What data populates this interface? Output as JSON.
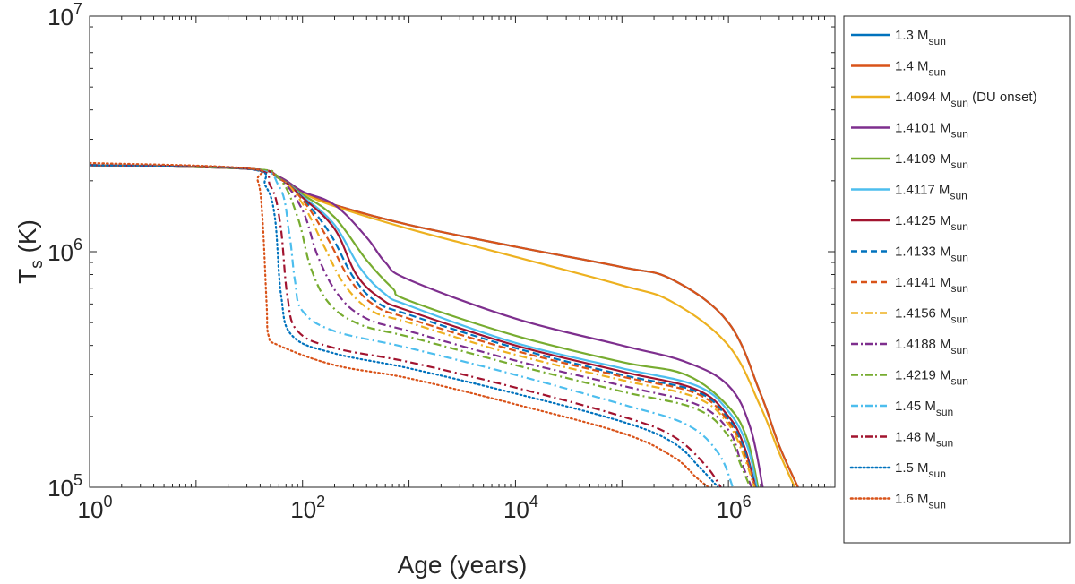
{
  "chart_data": {
    "type": "line",
    "title": "",
    "xlabel": "Age (years)",
    "ylabel_main": "T",
    "ylabel_sub": "s",
    "ylabel_tail": " (K)",
    "xscale": "log",
    "yscale": "log",
    "xlim": [
      1,
      10000000
    ],
    "ylim": [
      100000,
      10000000
    ],
    "x_ticks": [
      {
        "base": "10",
        "exp": "0",
        "value": 1
      },
      {
        "base": "10",
        "exp": "2",
        "value": 100
      },
      {
        "base": "10",
        "exp": "4",
        "value": 10000
      },
      {
        "base": "10",
        "exp": "6",
        "value": 1000000
      }
    ],
    "y_ticks": [
      {
        "base": "10",
        "exp": "5",
        "value": 100000
      },
      {
        "base": "10",
        "exp": "6",
        "value": 1000000
      },
      {
        "base": "10",
        "exp": "7",
        "value": 10000000
      }
    ],
    "grid": false,
    "legend_position": "outside-right",
    "series": [
      {
        "name": "1.3 M",
        "sub": "sun",
        "suffix": "",
        "color": "#0072BD",
        "dash": "solid",
        "points": [
          [
            1,
            2330000
          ],
          [
            30,
            2250000
          ],
          [
            60,
            2080000
          ],
          [
            100,
            1800000
          ],
          [
            200,
            1580000
          ],
          [
            1000,
            1300000
          ],
          [
            10000,
            1050000
          ],
          [
            100000,
            860000
          ],
          [
            300000,
            760000
          ],
          [
            1000000,
            500000
          ],
          [
            2000000,
            250000
          ],
          [
            3000000,
            150000
          ],
          [
            4500000,
            100000
          ]
        ]
      },
      {
        "name": "1.4 M",
        "sub": "sun",
        "suffix": "",
        "color": "#D95319",
        "dash": "solid",
        "points": [
          [
            1,
            2330000
          ],
          [
            30,
            2250000
          ],
          [
            60,
            2080000
          ],
          [
            100,
            1800000
          ],
          [
            200,
            1580000
          ],
          [
            1000,
            1300000
          ],
          [
            10000,
            1050000
          ],
          [
            100000,
            860000
          ],
          [
            300000,
            760000
          ],
          [
            1000000,
            500000
          ],
          [
            2000000,
            250000
          ],
          [
            3000000,
            150000
          ],
          [
            4500000,
            100000
          ]
        ]
      },
      {
        "name": "1.4094 M",
        "sub": "sun",
        "suffix": " (DU onset)",
        "color": "#EDB120",
        "dash": "solid",
        "points": [
          [
            1,
            2330000
          ],
          [
            30,
            2250000
          ],
          [
            60,
            2080000
          ],
          [
            100,
            1780000
          ],
          [
            200,
            1560000
          ],
          [
            1000,
            1250000
          ],
          [
            10000,
            950000
          ],
          [
            100000,
            720000
          ],
          [
            300000,
            610000
          ],
          [
            1000000,
            400000
          ],
          [
            2000000,
            220000
          ],
          [
            3000000,
            140000
          ],
          [
            4200000,
            100000
          ]
        ]
      },
      {
        "name": "1.4101 M",
        "sub": "sun",
        "suffix": "",
        "color": "#7E2F8E",
        "dash": "solid",
        "points": [
          [
            1,
            2330000
          ],
          [
            30,
            2250000
          ],
          [
            60,
            2080000
          ],
          [
            100,
            1800000
          ],
          [
            200,
            1580000
          ],
          [
            400,
            1150000
          ],
          [
            600,
            900000
          ],
          [
            1000,
            760000
          ],
          [
            10000,
            520000
          ],
          [
            100000,
            400000
          ],
          [
            400000,
            340000
          ],
          [
            1000000,
            270000
          ],
          [
            1600000,
            180000
          ],
          [
            2100000,
            100000
          ]
        ]
      },
      {
        "name": "1.4109 M",
        "sub": "sun",
        "suffix": "",
        "color": "#77AC30",
        "dash": "solid",
        "points": [
          [
            1,
            2330000
          ],
          [
            30,
            2250000
          ],
          [
            60,
            2050000
          ],
          [
            100,
            1750000
          ],
          [
            200,
            1400000
          ],
          [
            400,
            920000
          ],
          [
            700,
            700000
          ],
          [
            1000,
            620000
          ],
          [
            10000,
            440000
          ],
          [
            100000,
            340000
          ],
          [
            400000,
            300000
          ],
          [
            1000000,
            220000
          ],
          [
            1500000,
            160000
          ],
          [
            1900000,
            100000
          ]
        ]
      },
      {
        "name": "1.4117 M",
        "sub": "sun",
        "suffix": "",
        "color": "#4DBEEE",
        "dash": "solid",
        "points": [
          [
            1,
            2330000
          ],
          [
            30,
            2250000
          ],
          [
            60,
            2050000
          ],
          [
            100,
            1720000
          ],
          [
            200,
            1300000
          ],
          [
            350,
            850000
          ],
          [
            600,
            660000
          ],
          [
            1000,
            590000
          ],
          [
            10000,
            410000
          ],
          [
            100000,
            320000
          ],
          [
            500000,
            270000
          ],
          [
            1000000,
            210000
          ],
          [
            1500000,
            150000
          ],
          [
            1850000,
            100000
          ]
        ]
      },
      {
        "name": "1.4125 M",
        "sub": "sun",
        "suffix": "",
        "color": "#A2142F",
        "dash": "solid",
        "points": [
          [
            1,
            2330000
          ],
          [
            30,
            2250000
          ],
          [
            60,
            2050000
          ],
          [
            100,
            1700000
          ],
          [
            200,
            1250000
          ],
          [
            320,
            800000
          ],
          [
            550,
            630000
          ],
          [
            1000,
            560000
          ],
          [
            10000,
            400000
          ],
          [
            100000,
            310000
          ],
          [
            500000,
            260000
          ],
          [
            1000000,
            200000
          ],
          [
            1400000,
            150000
          ],
          [
            1800000,
            100000
          ]
        ]
      },
      {
        "name": "1.4133 M",
        "sub": "sun",
        "suffix": "",
        "color": "#0072BD",
        "dash": "dashed",
        "points": [
          [
            1,
            2330000
          ],
          [
            30,
            2250000
          ],
          [
            60,
            2050000
          ],
          [
            100,
            1680000
          ],
          [
            180,
            1200000
          ],
          [
            300,
            780000
          ],
          [
            500,
            610000
          ],
          [
            1000,
            540000
          ],
          [
            10000,
            390000
          ],
          [
            100000,
            300000
          ],
          [
            500000,
            255000
          ],
          [
            1000000,
            195000
          ],
          [
            1400000,
            145000
          ],
          [
            1800000,
            100000
          ]
        ]
      },
      {
        "name": "1.4141 M",
        "sub": "sun",
        "suffix": "",
        "color": "#D95319",
        "dash": "dashed",
        "points": [
          [
            1,
            2330000
          ],
          [
            30,
            2250000
          ],
          [
            60,
            2050000
          ],
          [
            100,
            1660000
          ],
          [
            170,
            1150000
          ],
          [
            280,
            760000
          ],
          [
            480,
            590000
          ],
          [
            1000,
            520000
          ],
          [
            10000,
            380000
          ],
          [
            100000,
            295000
          ],
          [
            500000,
            250000
          ],
          [
            1000000,
            190000
          ],
          [
            1400000,
            140000
          ],
          [
            1780000,
            100000
          ]
        ]
      },
      {
        "name": "1.4156 M",
        "sub": "sun",
        "suffix": "",
        "color": "#EDB120",
        "dash": "dashdot",
        "points": [
          [
            1,
            2330000
          ],
          [
            30,
            2250000
          ],
          [
            60,
            2050000
          ],
          [
            100,
            1600000
          ],
          [
            160,
            1050000
          ],
          [
            250,
            720000
          ],
          [
            450,
            560000
          ],
          [
            1000,
            500000
          ],
          [
            10000,
            365000
          ],
          [
            100000,
            285000
          ],
          [
            500000,
            240000
          ],
          [
            1000000,
            185000
          ],
          [
            1400000,
            135000
          ],
          [
            1750000,
            100000
          ]
        ]
      },
      {
        "name": "1.4188 M",
        "sub": "sun",
        "suffix": "",
        "color": "#7E2F8E",
        "dash": "dashdot",
        "points": [
          [
            1,
            2330000
          ],
          [
            30,
            2250000
          ],
          [
            60,
            2050000
          ],
          [
            100,
            1500000
          ],
          [
            140,
            950000
          ],
          [
            220,
            650000
          ],
          [
            400,
            520000
          ],
          [
            1000,
            460000
          ],
          [
            10000,
            345000
          ],
          [
            100000,
            270000
          ],
          [
            500000,
            225000
          ],
          [
            1000000,
            175000
          ],
          [
            1300000,
            130000
          ],
          [
            1650000,
            100000
          ]
        ]
      },
      {
        "name": "1.4219 M",
        "sub": "sun",
        "suffix": "",
        "color": "#77AC30",
        "dash": "dashdot",
        "points": [
          [
            1,
            2330000
          ],
          [
            30,
            2250000
          ],
          [
            60,
            2050000
          ],
          [
            90,
            1400000
          ],
          [
            120,
            850000
          ],
          [
            180,
            600000
          ],
          [
            350,
            490000
          ],
          [
            1000,
            435000
          ],
          [
            10000,
            330000
          ],
          [
            100000,
            255000
          ],
          [
            500000,
            215000
          ],
          [
            1000000,
            165000
          ],
          [
            1300000,
            125000
          ],
          [
            1600000,
            100000
          ]
        ]
      },
      {
        "name": "1.45 M",
        "sub": "sun",
        "suffix": "",
        "color": "#4DBEEE",
        "dash": "dashdot",
        "points": [
          [
            1,
            2330000
          ],
          [
            30,
            2250000
          ],
          [
            60,
            1900000
          ],
          [
            75,
            1200000
          ],
          [
            85,
            750000
          ],
          [
            100,
            560000
          ],
          [
            200,
            460000
          ],
          [
            1000,
            390000
          ],
          [
            10000,
            300000
          ],
          [
            100000,
            225000
          ],
          [
            400000,
            185000
          ],
          [
            800000,
            140000
          ],
          [
            1100000,
            100000
          ]
        ]
      },
      {
        "name": "1.48 M",
        "sub": "sun",
        "suffix": "",
        "color": "#A2142F",
        "dash": "dashdot",
        "points": [
          [
            1,
            2330000
          ],
          [
            30,
            2250000
          ],
          [
            50,
            1900000
          ],
          [
            62,
            1300000
          ],
          [
            72,
            650000
          ],
          [
            90,
            460000
          ],
          [
            200,
            390000
          ],
          [
            1000,
            340000
          ],
          [
            10000,
            265000
          ],
          [
            100000,
            200000
          ],
          [
            300000,
            165000
          ],
          [
            600000,
            125000
          ],
          [
            850000,
            100000
          ]
        ]
      },
      {
        "name": "1.5 M",
        "sub": "sun",
        "suffix": "",
        "color": "#0072BD",
        "dash": "dotted",
        "points": [
          [
            1,
            2330000
          ],
          [
            30,
            2250000
          ],
          [
            45,
            1900000
          ],
          [
            55,
            1400000
          ],
          [
            63,
            650000
          ],
          [
            80,
            440000
          ],
          [
            200,
            370000
          ],
          [
            1000,
            320000
          ],
          [
            10000,
            250000
          ],
          [
            100000,
            190000
          ],
          [
            300000,
            155000
          ],
          [
            550000,
            120000
          ],
          [
            800000,
            100000
          ]
        ]
      },
      {
        "name": "1.6 M",
        "sub": "sun",
        "suffix": "",
        "color": "#D95319",
        "dash": "dotted",
        "points": [
          [
            1,
            2380000
          ],
          [
            30,
            2260000
          ],
          [
            38,
            2000000
          ],
          [
            42,
            1400000
          ],
          [
            46,
            600000
          ],
          [
            48,
            440000
          ],
          [
            60,
            400000
          ],
          [
            200,
            330000
          ],
          [
            1000,
            290000
          ],
          [
            10000,
            225000
          ],
          [
            100000,
            170000
          ],
          [
            300000,
            135000
          ],
          [
            500000,
            110000
          ],
          [
            650000,
            100000
          ]
        ]
      }
    ]
  }
}
